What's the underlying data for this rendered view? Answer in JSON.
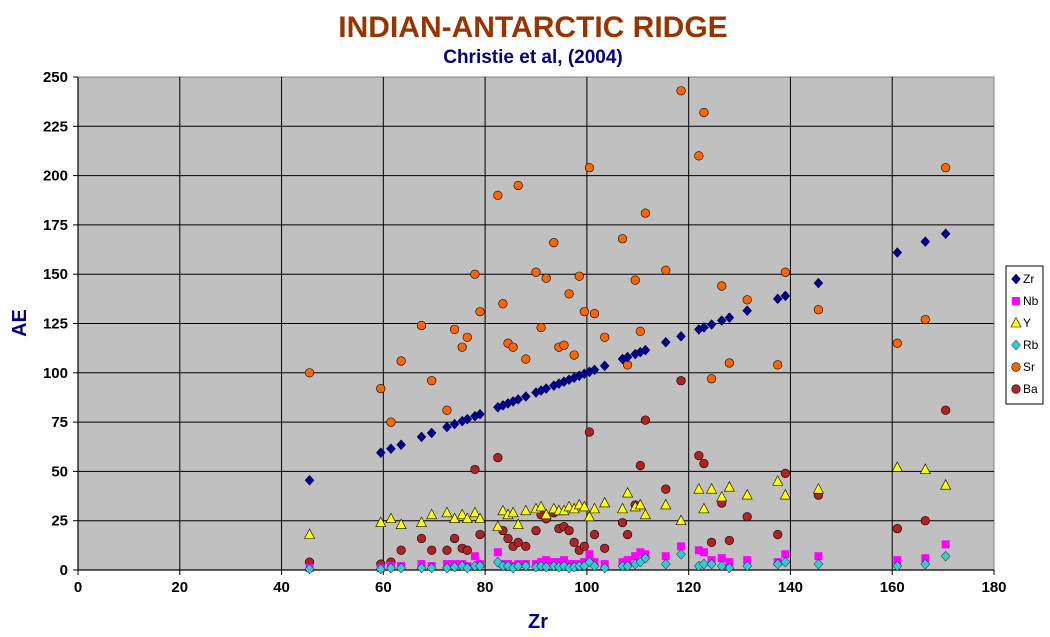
{
  "chart_data": {
    "type": "scatter",
    "title": "INDIAN-ANTARCTIC RIDGE",
    "subtitle": "Christie et al, (2004)",
    "xlabel": "Zr",
    "ylabel": "AE",
    "xlim": [
      0,
      180
    ],
    "ylim": [
      0,
      250
    ],
    "xticks": [
      0,
      20,
      40,
      60,
      80,
      100,
      120,
      140,
      160,
      180
    ],
    "yticks": [
      0,
      25,
      50,
      75,
      100,
      125,
      150,
      175,
      200,
      225,
      250
    ],
    "grid": true,
    "legend_position": "right",
    "x": [
      45.5,
      59.5,
      61.5,
      63.5,
      67.5,
      69.5,
      72.5,
      74,
      75.5,
      76.5,
      78,
      79,
      82.5,
      83.5,
      84.5,
      85.5,
      86.5,
      88,
      90,
      91,
      92,
      93.5,
      94.5,
      95.5,
      96.5,
      97.5,
      98.5,
      99.5,
      100.5,
      101.5,
      103.5,
      107,
      108,
      109.5,
      110.5,
      111.5,
      115.5,
      118.5,
      122,
      123,
      124.5,
      126.5,
      128,
      131.5,
      137.5,
      139,
      145.5,
      161,
      166.5,
      170.5
    ],
    "series": [
      {
        "name": "Zr",
        "color": "#00008b",
        "marker": "diamond",
        "values": [
          45.5,
          59.5,
          61.5,
          63.5,
          67.5,
          69.5,
          72.5,
          74,
          75.5,
          76.5,
          78,
          79,
          82.5,
          83.5,
          84.5,
          85.5,
          86.5,
          88,
          90,
          91,
          92,
          93.5,
          94.5,
          95.5,
          96.5,
          97.5,
          98.5,
          99.5,
          100.5,
          101.5,
          103.5,
          107,
          108,
          109.5,
          110.5,
          111.5,
          115.5,
          118.5,
          122,
          123,
          124.5,
          126.5,
          128,
          131.5,
          137.5,
          139,
          145.5,
          161,
          166.5,
          170.5
        ]
      },
      {
        "name": "Nb",
        "color": "#ff00ff",
        "marker": "square",
        "values": [
          1,
          1,
          2,
          2,
          3,
          2,
          3,
          3,
          3,
          2,
          7,
          3,
          9,
          3,
          3,
          2,
          3,
          3,
          3,
          4,
          5,
          4,
          4,
          5,
          3,
          3,
          3,
          4,
          8,
          4,
          3,
          4,
          5,
          7,
          9,
          8,
          7,
          12,
          10,
          9,
          5,
          6,
          4,
          5,
          4,
          8,
          7,
          5,
          6,
          13
        ]
      },
      {
        "name": "Y",
        "color": "#ffff00",
        "marker": "triangle",
        "values": [
          18,
          24,
          26,
          23,
          24,
          28,
          29,
          26,
          28,
          26,
          29,
          26,
          22,
          30,
          28,
          29,
          23,
          30,
          31,
          32,
          28,
          31,
          30,
          30,
          32,
          31,
          33,
          32,
          27,
          31,
          34,
          31,
          39,
          32,
          33,
          28,
          33,
          25,
          41,
          31,
          41,
          37,
          42,
          38,
          45,
          38,
          41,
          52,
          51,
          43
        ]
      },
      {
        "name": "Rb",
        "color": "#33cccc",
        "marker": "diamond",
        "values": [
          0.5,
          0.5,
          1,
          1,
          1,
          1,
          1,
          1.5,
          2,
          1,
          2,
          2,
          4,
          2,
          2,
          1,
          2,
          2,
          1.5,
          2,
          1.5,
          2,
          1.5,
          2,
          1,
          1.5,
          2,
          2,
          4,
          2,
          1,
          2,
          2,
          3,
          4,
          6,
          3,
          8,
          2,
          3,
          3,
          2,
          1,
          2,
          3,
          4,
          3,
          2,
          3,
          7
        ]
      },
      {
        "name": "Sr",
        "color": "#ff6600",
        "marker": "circle",
        "values": [
          100,
          92,
          75,
          106,
          124,
          96,
          81,
          122,
          113,
          118,
          150,
          131,
          190,
          135,
          115,
          113,
          195,
          107,
          151,
          123,
          148,
          166,
          113,
          114,
          140,
          109,
          149,
          131,
          204,
          130,
          118,
          168,
          104,
          147,
          121,
          181,
          152,
          243,
          210,
          232,
          97,
          144,
          105,
          137,
          104,
          151,
          132,
          115,
          127,
          204
        ]
      },
      {
        "name": "Ba",
        "color": "#b22222",
        "marker": "circle",
        "values": [
          4,
          3,
          4,
          10,
          16,
          10,
          10,
          16,
          11,
          10,
          51,
          18,
          57,
          20,
          16,
          12,
          14,
          12,
          20,
          28,
          26,
          29,
          21,
          22,
          20,
          14,
          10,
          12,
          70,
          18,
          11,
          24,
          18,
          33,
          53,
          76,
          41,
          96,
          58,
          54,
          14,
          34,
          15,
          27,
          18,
          49,
          38,
          21,
          25,
          81
        ]
      }
    ]
  }
}
